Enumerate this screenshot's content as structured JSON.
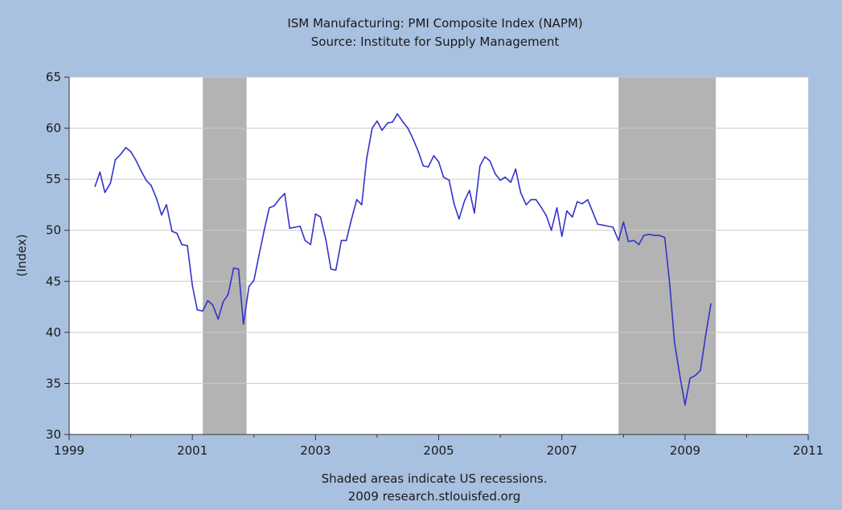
{
  "chart_data": {
    "type": "line",
    "title": "ISM Manufacturing: PMI Composite Index (NAPM)",
    "subtitle": "Source: Institute for Supply Management",
    "ylabel": "(Index)",
    "xlabel": "",
    "xlim": [
      1999,
      2011
    ],
    "ylim": [
      30,
      65
    ],
    "x_ticks": [
      "1999",
      "2001",
      "2003",
      "2005",
      "2007",
      "2009",
      "2011"
    ],
    "x_tick_values": [
      1999,
      2001,
      2003,
      2005,
      2007,
      2009,
      2011
    ],
    "y_ticks": [
      "30",
      "35",
      "40",
      "45",
      "50",
      "55",
      "60",
      "65"
    ],
    "y_tick_values": [
      30,
      35,
      40,
      45,
      50,
      55,
      60,
      65
    ],
    "grid": "horizontal",
    "recessions": [
      {
        "start": 2001.17,
        "end": 2001.88
      },
      {
        "start": 2007.92,
        "end": 2009.5
      }
    ],
    "footnote": "Shaded areas indicate US recessions.",
    "credit": "2009 research.stlouisfed.org",
    "colors": {
      "line": "#3333cc",
      "recession": "#b3b3b3",
      "plot_bg": "#ffffff",
      "page_bg": "#a9c1e0",
      "grid": "#c8c8c8"
    },
    "series": [
      {
        "points": [
          [
            1999.42,
            54.3
          ],
          [
            1999.5,
            55.7
          ],
          [
            1999.58,
            53.7
          ],
          [
            1999.67,
            54.6
          ],
          [
            1999.75,
            56.9
          ],
          [
            1999.83,
            57.4
          ],
          [
            1999.92,
            58.1
          ],
          [
            2000.0,
            57.7
          ],
          [
            2000.08,
            56.9
          ],
          [
            2000.17,
            55.8
          ],
          [
            2000.25,
            54.9
          ],
          [
            2000.33,
            54.4
          ],
          [
            2000.42,
            53.1
          ],
          [
            2000.5,
            51.5
          ],
          [
            2000.58,
            52.5
          ],
          [
            2000.67,
            49.9
          ],
          [
            2000.75,
            49.7
          ],
          [
            2000.83,
            48.6
          ],
          [
            2000.92,
            48.5
          ],
          [
            2001.0,
            44.6
          ],
          [
            2001.08,
            42.2
          ],
          [
            2001.17,
            42.1
          ],
          [
            2001.25,
            43.1
          ],
          [
            2001.33,
            42.7
          ],
          [
            2001.42,
            41.3
          ],
          [
            2001.5,
            43.0
          ],
          [
            2001.58,
            43.7
          ],
          [
            2001.67,
            46.3
          ],
          [
            2001.75,
            46.2
          ],
          [
            2001.83,
            40.8
          ],
          [
            2001.92,
            44.5
          ],
          [
            2002.0,
            45.1
          ],
          [
            2002.08,
            47.5
          ],
          [
            2002.17,
            50.1
          ],
          [
            2002.25,
            52.2
          ],
          [
            2002.33,
            52.4
          ],
          [
            2002.42,
            53.1
          ],
          [
            2002.5,
            53.6
          ],
          [
            2002.58,
            50.2
          ],
          [
            2002.67,
            50.3
          ],
          [
            2002.75,
            50.4
          ],
          [
            2002.83,
            49.0
          ],
          [
            2002.92,
            48.6
          ],
          [
            2003.0,
            51.6
          ],
          [
            2003.08,
            51.3
          ],
          [
            2003.17,
            49.0
          ],
          [
            2003.25,
            46.2
          ],
          [
            2003.33,
            46.1
          ],
          [
            2003.42,
            49.0
          ],
          [
            2003.5,
            49.0
          ],
          [
            2003.58,
            51.0
          ],
          [
            2003.67,
            53.0
          ],
          [
            2003.75,
            52.5
          ],
          [
            2003.83,
            57.0
          ],
          [
            2003.92,
            60.0
          ],
          [
            2004.0,
            60.7
          ],
          [
            2004.08,
            59.8
          ],
          [
            2004.17,
            60.5
          ],
          [
            2004.25,
            60.6
          ],
          [
            2004.33,
            61.4
          ],
          [
            2004.42,
            60.6
          ],
          [
            2004.5,
            60.0
          ],
          [
            2004.58,
            59.0
          ],
          [
            2004.67,
            57.7
          ],
          [
            2004.75,
            56.3
          ],
          [
            2004.83,
            56.2
          ],
          [
            2004.92,
            57.3
          ],
          [
            2005.0,
            56.7
          ],
          [
            2005.08,
            55.2
          ],
          [
            2005.17,
            54.9
          ],
          [
            2005.25,
            52.6
          ],
          [
            2005.33,
            51.1
          ],
          [
            2005.42,
            52.9
          ],
          [
            2005.5,
            53.9
          ],
          [
            2005.58,
            51.7
          ],
          [
            2005.67,
            56.3
          ],
          [
            2005.75,
            57.2
          ],
          [
            2005.83,
            56.8
          ],
          [
            2005.92,
            55.5
          ],
          [
            2006.0,
            54.9
          ],
          [
            2006.08,
            55.2
          ],
          [
            2006.17,
            54.7
          ],
          [
            2006.25,
            56.0
          ],
          [
            2006.33,
            53.7
          ],
          [
            2006.42,
            52.5
          ],
          [
            2006.5,
            53.0
          ],
          [
            2006.58,
            53.0
          ],
          [
            2006.67,
            52.2
          ],
          [
            2006.75,
            51.4
          ],
          [
            2006.83,
            50.0
          ],
          [
            2006.92,
            52.2
          ],
          [
            2007.0,
            49.4
          ],
          [
            2007.08,
            51.9
          ],
          [
            2007.17,
            51.3
          ],
          [
            2007.25,
            52.8
          ],
          [
            2007.33,
            52.6
          ],
          [
            2007.42,
            53.0
          ],
          [
            2007.5,
            51.8
          ],
          [
            2007.58,
            50.6
          ],
          [
            2007.67,
            50.5
          ],
          [
            2007.75,
            50.4
          ],
          [
            2007.83,
            50.3
          ],
          [
            2007.92,
            49.0
          ],
          [
            2008.0,
            50.8
          ],
          [
            2008.08,
            48.9
          ],
          [
            2008.17,
            49.0
          ],
          [
            2008.25,
            48.6
          ],
          [
            2008.33,
            49.5
          ],
          [
            2008.42,
            49.6
          ],
          [
            2008.5,
            49.5
          ],
          [
            2008.58,
            49.5
          ],
          [
            2008.67,
            49.3
          ],
          [
            2008.75,
            44.8
          ],
          [
            2008.83,
            39.0
          ],
          [
            2008.92,
            35.6
          ],
          [
            2009.0,
            32.9
          ],
          [
            2009.08,
            35.5
          ],
          [
            2009.17,
            35.8
          ],
          [
            2009.25,
            36.3
          ],
          [
            2009.33,
            39.5
          ],
          [
            2009.42,
            42.8
          ]
        ]
      }
    ]
  }
}
